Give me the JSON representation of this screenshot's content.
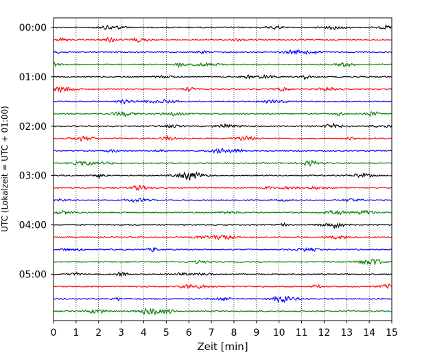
{
  "chart_data": {
    "type": "line",
    "xlabel": "Zeit  [min]",
    "ylabel": "UTC (Lokalzeit = UTC + 01:00)",
    "xlim": [
      0,
      15
    ],
    "x_ticks": [
      0,
      1,
      2,
      3,
      4,
      5,
      6,
      7,
      8,
      9,
      10,
      11,
      12,
      13,
      14,
      15
    ],
    "x_tick_labels": [
      "0",
      "1",
      "2",
      "3",
      "4",
      "5",
      "6",
      "7",
      "8",
      "9",
      "10",
      "11",
      "12",
      "13",
      "14",
      "15"
    ],
    "y_tick_labels": [
      "00:00",
      "01:00",
      "02:00",
      "03:00",
      "04:00",
      "05:00"
    ],
    "grid": "vertical dotted lines at each minute",
    "trace_colors": [
      "#000000",
      "#ff0000",
      "#0000ff",
      "#008000"
    ],
    "trace_count": 24,
    "trace_interval_minutes": 15,
    "first_trace_start": "00:00",
    "last_trace_start": "05:45"
  }
}
